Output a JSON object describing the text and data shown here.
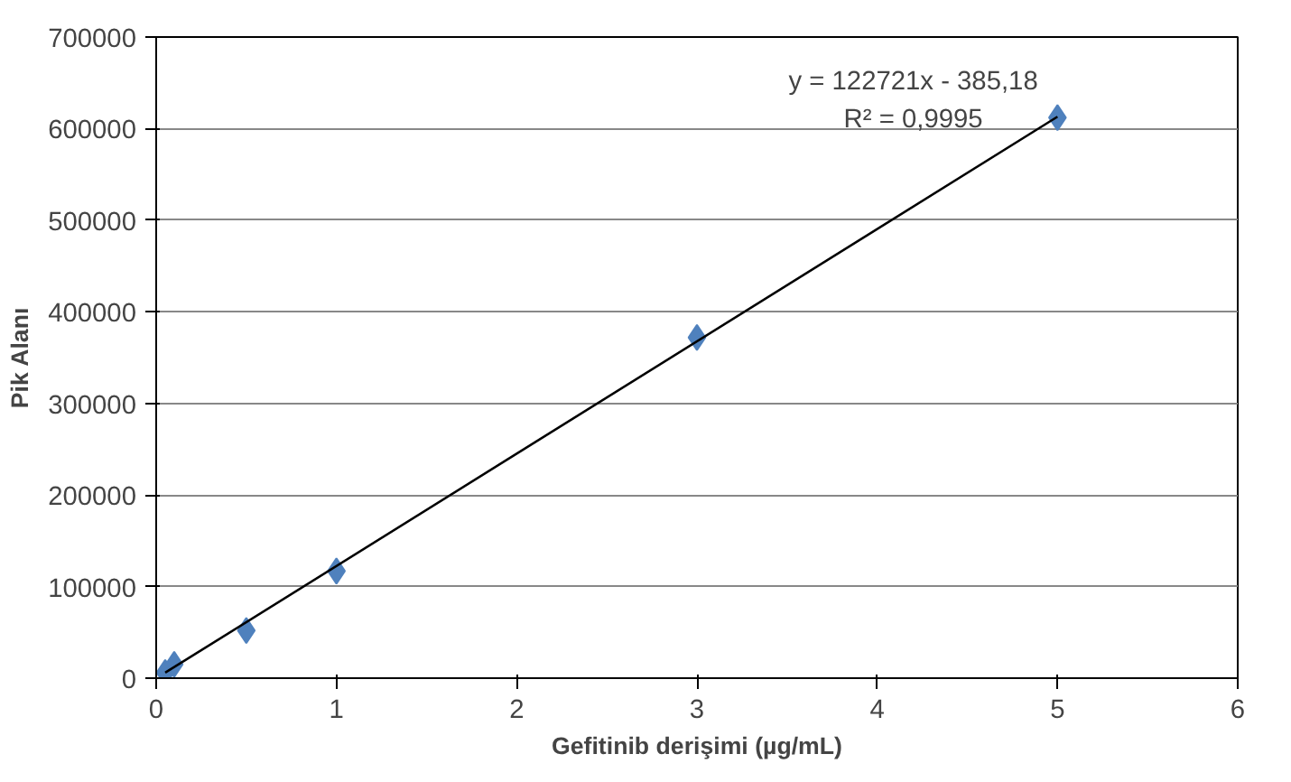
{
  "chart_data": {
    "type": "scatter",
    "xlabel": "Gefitinib derişimi (µg/mL)",
    "ylabel": "Pik Alanı",
    "xlim": [
      0,
      6
    ],
    "xticks": [
      0,
      1,
      2,
      3,
      4,
      5,
      6
    ],
    "ylim": [
      0,
      700000
    ],
    "yticks": [
      0,
      100000,
      200000,
      300000,
      400000,
      500000,
      600000,
      700000
    ],
    "grid": "y",
    "series": [
      {
        "color": "#4f81bd",
        "marker": "diamond",
        "x": [
          0.05,
          0.1,
          0.5,
          1,
          3,
          5
        ],
        "values": [
          6000,
          15000,
          52000,
          117000,
          372000,
          612000
        ]
      },
      {
        "type": "line",
        "color": "#000000",
        "marker": "none",
        "x": [
          0.05,
          5
        ],
        "values": [
          6000,
          613000
        ]
      }
    ],
    "annotations": [
      "y = 122721x - 385,18",
      "R² = 0,9995"
    ]
  }
}
